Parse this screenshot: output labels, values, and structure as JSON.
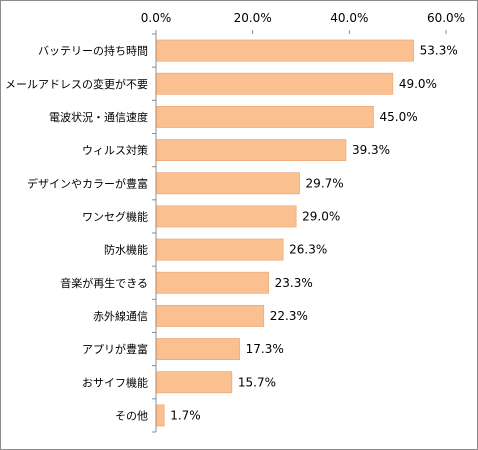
{
  "chart_data": {
    "type": "bar",
    "orientation": "horizontal",
    "categories": [
      "バッテリーの持ち時間",
      "メールアドレスの変更が不要",
      "電波状況・通信速度",
      "ウィルス対策",
      "デザインやカラーが豊富",
      "ワンセグ機能",
      "防水機能",
      "音楽が再生できる",
      "赤外線通信",
      "アプリが豊富",
      "おサイフ機能",
      "その他"
    ],
    "values": [
      53.3,
      49.0,
      45.0,
      39.3,
      29.7,
      29.0,
      26.3,
      23.3,
      22.3,
      17.3,
      15.7,
      1.7
    ],
    "value_labels": [
      "53.3%",
      "49.0%",
      "45.0%",
      "39.3%",
      "29.7%",
      "29.0%",
      "26.3%",
      "23.3%",
      "22.3%",
      "17.3%",
      "15.7%",
      "1.7%"
    ],
    "x_ticks": [
      0,
      20,
      40,
      60
    ],
    "x_tick_labels": [
      "0.0%",
      "20.0%",
      "40.0%",
      "60.0%"
    ],
    "xlim": [
      0,
      60
    ],
    "axis_position": "top",
    "grid": false,
    "bar_color": "#fac090",
    "bar_edge_color": "#e8a070"
  }
}
